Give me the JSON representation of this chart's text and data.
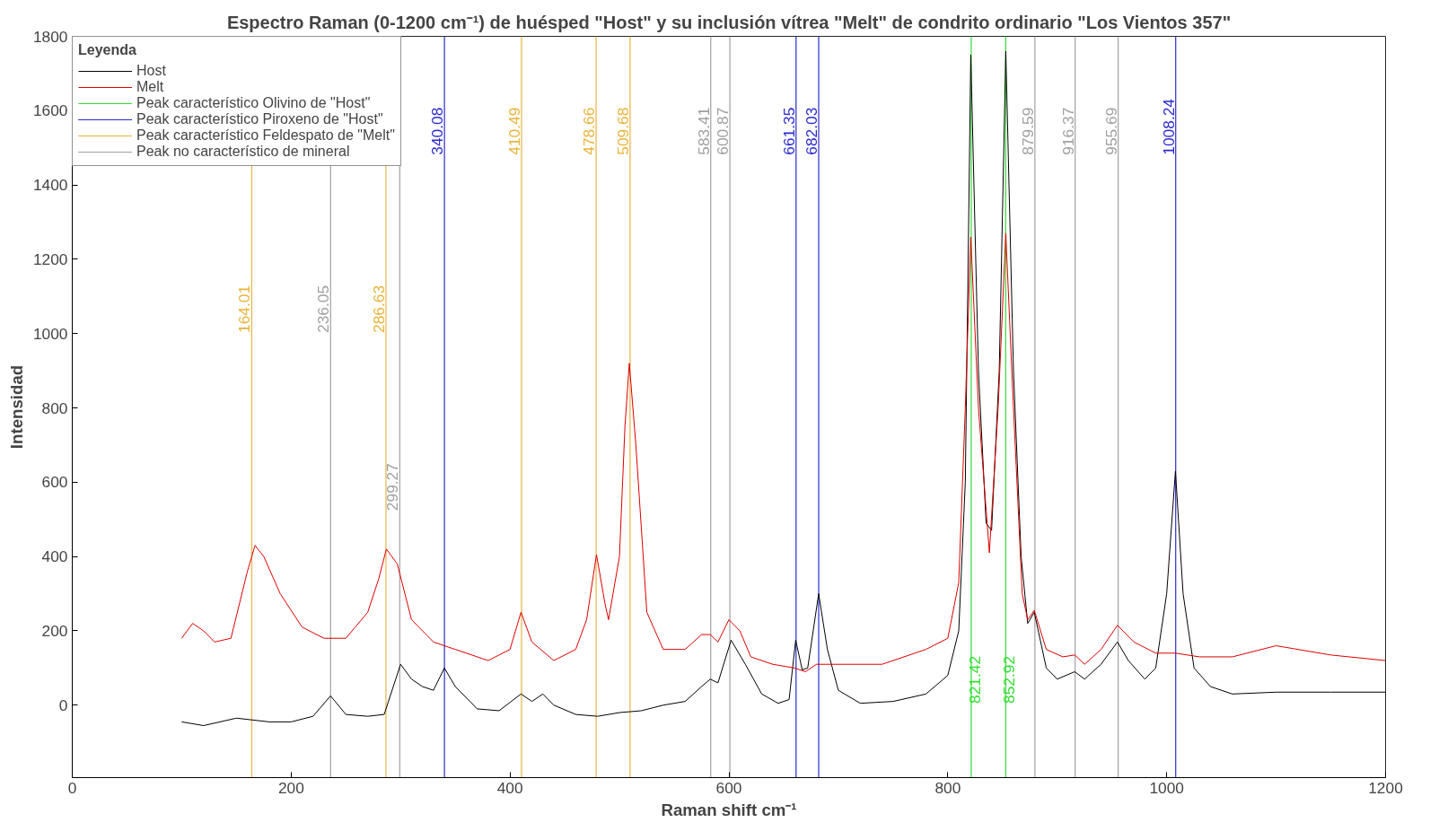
{
  "chart_data": {
    "type": "line",
    "title": "Espectro Raman (0-1200 cm⁻¹) de huésped \"Host\" y su inclusión vítrea \"Melt\" de condrito ordinario \"Los Vientos 357\"",
    "xlabel": "Raman shift cm⁻¹",
    "ylabel": "Intensidad",
    "legend_title": "Leyenda",
    "xlim": [
      0,
      1200
    ],
    "xticks": [
      0,
      200,
      400,
      600,
      800,
      1000,
      1200
    ],
    "ylim": [
      -195,
      1800
    ],
    "yticks": [
      0,
      200,
      400,
      600,
      800,
      1000,
      1200,
      1400,
      1600,
      1800
    ],
    "grid": false,
    "legend": "top left",
    "line_style": "solid",
    "marker": "none",
    "series": [
      {
        "name": "Host",
        "color": "#000000",
        "x": [
          100,
          120,
          150,
          180,
          200,
          220,
          236,
          250,
          270,
          285,
          300,
          310,
          320,
          330,
          340,
          350,
          370,
          390,
          410,
          420,
          430,
          440,
          460,
          480,
          500,
          520,
          540,
          560,
          575,
          583,
          590,
          602,
          615,
          630,
          645,
          655,
          661,
          667,
          672,
          682,
          690,
          700,
          720,
          750,
          780,
          800,
          810,
          816,
          821,
          828,
          835,
          840,
          847,
          853,
          860,
          867,
          873,
          879,
          890,
          900,
          916,
          925,
          940,
          955,
          965,
          980,
          990,
          1000,
          1008,
          1015,
          1025,
          1040,
          1060,
          1100,
          1150,
          1200
        ],
        "values": [
          -45,
          -55,
          -35,
          -45,
          -45,
          -30,
          25,
          -25,
          -30,
          -25,
          110,
          70,
          50,
          40,
          100,
          50,
          -10,
          -15,
          30,
          10,
          30,
          0,
          -25,
          -30,
          -20,
          -15,
          0,
          10,
          50,
          70,
          60,
          175,
          110,
          30,
          5,
          15,
          175,
          95,
          100,
          300,
          150,
          40,
          5,
          10,
          30,
          80,
          200,
          600,
          1750,
          900,
          490,
          470,
          900,
          1760,
          900,
          400,
          220,
          250,
          100,
          70,
          90,
          70,
          110,
          170,
          120,
          70,
          100,
          300,
          630,
          300,
          100,
          50,
          30,
          35,
          35,
          35
        ]
      },
      {
        "name": "Melt",
        "color": "#dd0000",
        "x": [
          100,
          110,
          120,
          130,
          145,
          160,
          167,
          175,
          190,
          210,
          230,
          250,
          270,
          280,
          287,
          297,
          310,
          330,
          350,
          380,
          400,
          410,
          420,
          440,
          460,
          470,
          479,
          487,
          490,
          500,
          505,
          509,
          515,
          525,
          540,
          560,
          575,
          583,
          590,
          600,
          610,
          620,
          640,
          660,
          670,
          680,
          700,
          740,
          780,
          800,
          810,
          816,
          821,
          828,
          838,
          846,
          853,
          860,
          868,
          873,
          879,
          890,
          905,
          916,
          925,
          940,
          955,
          970,
          990,
          1008,
          1030,
          1060,
          1100,
          1150,
          1200
        ],
        "values": [
          180,
          220,
          200,
          170,
          180,
          360,
          430,
          400,
          300,
          210,
          180,
          180,
          250,
          340,
          420,
          380,
          230,
          170,
          150,
          120,
          150,
          250,
          170,
          120,
          150,
          230,
          405,
          270,
          230,
          400,
          750,
          920,
          700,
          250,
          150,
          150,
          190,
          190,
          170,
          230,
          200,
          130,
          110,
          100,
          90,
          110,
          110,
          110,
          150,
          180,
          330,
          800,
          1260,
          800,
          410,
          800,
          1270,
          800,
          300,
          230,
          255,
          150,
          130,
          135,
          110,
          150,
          215,
          170,
          140,
          140,
          130,
          130,
          160,
          135,
          120
        ]
      },
      {
        "type": "line",
        "name": "Peak característico Olivino de \"Host\"",
        "color": "#33dd33"
      },
      {
        "type": "line",
        "name": "Peak característico Piroxeno de \"Host\"",
        "color": "#2a2ad0"
      },
      {
        "type": "line",
        "name": "Peak característico Feldespato de \"Melt\"",
        "color": "#e8b43c"
      },
      {
        "type": "line",
        "name": "Peak no característico de mineral",
        "color": "#a0a0a0"
      }
    ],
    "ref_lines": [
      {
        "axis": "x",
        "value": 164.01,
        "label": "164.01",
        "color": "#e8b43c"
      },
      {
        "axis": "x",
        "value": 236.05,
        "label": "236.05",
        "color": "#a0a0a0"
      },
      {
        "axis": "x",
        "value": 286.63,
        "label": "286.63",
        "color": "#e8b43c"
      },
      {
        "axis": "x",
        "value": 299.27,
        "label": "299.27",
        "color": "#a0a0a0"
      },
      {
        "axis": "x",
        "value": 340.08,
        "label": "340.08",
        "color": "#2a2ad0"
      },
      {
        "axis": "x",
        "value": 410.49,
        "label": "410.49",
        "color": "#e8b43c"
      },
      {
        "axis": "x",
        "value": 478.66,
        "label": "478.66",
        "color": "#e8b43c"
      },
      {
        "axis": "x",
        "value": 509.68,
        "label": "509.68",
        "color": "#e8b43c"
      },
      {
        "axis": "x",
        "value": 583.41,
        "label": "583.41",
        "color": "#a0a0a0"
      },
      {
        "axis": "x",
        "value": 600.87,
        "label": "600.87",
        "color": "#a0a0a0"
      },
      {
        "axis": "x",
        "value": 661.35,
        "label": "661.35",
        "color": "#2a2ad0"
      },
      {
        "axis": "x",
        "value": 682.03,
        "label": "682.03",
        "color": "#2a2ad0"
      },
      {
        "axis": "x",
        "value": 821.42,
        "label": "821.42",
        "color": "#33dd33"
      },
      {
        "axis": "x",
        "value": 852.92,
        "label": "852.92",
        "color": "#33dd33"
      },
      {
        "axis": "x",
        "value": 879.59,
        "label": "879.59",
        "color": "#a0a0a0"
      },
      {
        "axis": "x",
        "value": 916.37,
        "label": "916.37",
        "color": "#a0a0a0"
      },
      {
        "axis": "x",
        "value": 955.69,
        "label": "955.69",
        "color": "#a0a0a0"
      },
      {
        "axis": "x",
        "value": 1008.24,
        "label": "1008.24",
        "color": "#2a2ad0"
      }
    ]
  }
}
